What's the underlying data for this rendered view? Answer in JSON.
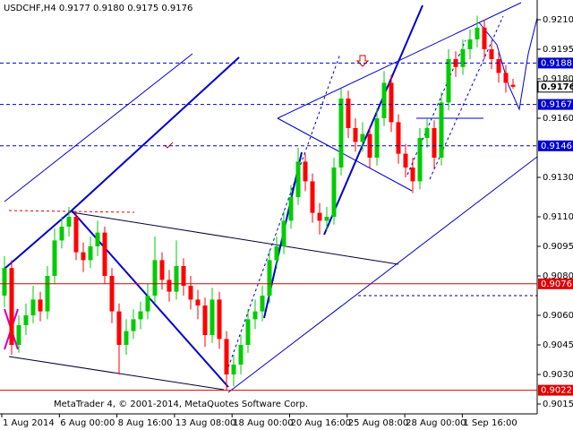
{
  "chart_data": {
    "type": "candlestick",
    "title": "USDCHF,H4  0.9177 0.9180 0.9175 0.9176",
    "watermark": "MetaTrader 4, © 2001-2014, MetaQuotes Software Corp.",
    "x_labels": [
      "1 Aug 2014",
      "6 Aug 00:00",
      "8 Aug 16:00",
      "13 Aug 08:00",
      "18 Aug 00:00",
      "20 Aug 16:00",
      "25 Aug 08:00",
      "28 Aug 00:00",
      "1 Sep 16:00"
    ],
    "ylim": [
      0.901,
      0.922
    ],
    "yticks": [
      {
        "value": 0.921,
        "label": "0.9210"
      },
      {
        "value": 0.9195,
        "label": "0.9195"
      },
      {
        "value": 0.918,
        "label": "0.9180"
      },
      {
        "value": 0.916,
        "label": "0.9160"
      },
      {
        "value": 0.913,
        "label": "0.9130"
      },
      {
        "value": 0.911,
        "label": "0.9110"
      },
      {
        "value": 0.9095,
        "label": "0.9095"
      },
      {
        "value": 0.908,
        "label": "0.9080"
      },
      {
        "value": 0.906,
        "label": "0.9060"
      },
      {
        "value": 0.9045,
        "label": "0.9045"
      },
      {
        "value": 0.903,
        "label": "0.9030"
      },
      {
        "value": 0.9015,
        "label": "0.9015"
      }
    ],
    "bull_color": "#00cc00",
    "bear_color": "#ff0000",
    "open": [
      0.907,
      0.9084,
      0.9045,
      0.9055,
      0.906,
      0.9068,
      0.9062,
      0.908,
      0.9098,
      0.9105,
      0.911,
      0.9092,
      0.9088,
      0.9095,
      0.9102,
      0.908,
      0.9062,
      0.9045,
      0.9052,
      0.9058,
      0.9062,
      0.907,
      0.9088,
      0.9078,
      0.9072,
      0.9085,
      0.9075,
      0.9068,
      0.9065,
      0.905,
      0.9068,
      0.9048,
      0.903,
      0.9035,
      0.9045,
      0.9058,
      0.9062,
      0.907,
      0.9088,
      0.9095,
      0.9108,
      0.912,
      0.9138,
      0.9128,
      0.9112,
      0.9108,
      0.911,
      0.9135,
      0.917,
      0.9155,
      0.9148,
      0.9152,
      0.914,
      0.916,
      0.9178,
      0.9158,
      0.9142,
      0.9135,
      0.9128,
      0.915,
      0.9155,
      0.914,
      0.9168,
      0.919,
      0.9186,
      0.9195,
      0.92,
      0.9206,
      0.9195,
      0.919,
      0.9183,
      0.9177
    ],
    "high": [
      0.909,
      0.9088,
      0.906,
      0.9066,
      0.9075,
      0.9072,
      0.9085,
      0.9104,
      0.911,
      0.9115,
      0.9113,
      0.9097,
      0.91,
      0.9108,
      0.9105,
      0.9084,
      0.9066,
      0.9058,
      0.9063,
      0.9067,
      0.9076,
      0.91,
      0.9092,
      0.9083,
      0.9098,
      0.9089,
      0.908,
      0.9073,
      0.9069,
      0.9074,
      0.9072,
      0.9052,
      0.904,
      0.905,
      0.9063,
      0.9068,
      0.9075,
      0.9093,
      0.91,
      0.9113,
      0.9126,
      0.9145,
      0.9142,
      0.9132,
      0.9117,
      0.9115,
      0.914,
      0.9175,
      0.9174,
      0.916,
      0.9158,
      0.9156,
      0.9165,
      0.9184,
      0.9182,
      0.9162,
      0.9147,
      0.914,
      0.9155,
      0.916,
      0.9159,
      0.9173,
      0.9195,
      0.9194,
      0.92,
      0.9205,
      0.9212,
      0.921,
      0.9199,
      0.9194,
      0.9187,
      0.918
    ],
    "low": [
      0.9064,
      0.904,
      0.9041,
      0.905,
      0.9056,
      0.9057,
      0.9058,
      0.9076,
      0.9094,
      0.91,
      0.9088,
      0.9082,
      0.9084,
      0.909,
      0.9076,
      0.9056,
      0.903,
      0.904,
      0.9048,
      0.9053,
      0.9058,
      0.9066,
      0.9073,
      0.9067,
      0.9068,
      0.907,
      0.9063,
      0.9058,
      0.9044,
      0.9046,
      0.9043,
      0.9022,
      0.9024,
      0.903,
      0.9041,
      0.9053,
      0.9057,
      0.9066,
      0.9084,
      0.9091,
      0.9104,
      0.9116,
      0.9123,
      0.9107,
      0.9101,
      0.9103,
      0.9106,
      0.9131,
      0.915,
      0.9143,
      0.9143,
      0.9135,
      0.9136,
      0.9156,
      0.9153,
      0.9137,
      0.913,
      0.9122,
      0.9124,
      0.9145,
      0.9134,
      0.9136,
      0.9164,
      0.9181,
      0.9182,
      0.919,
      0.9196,
      0.919,
      0.9185,
      0.9178,
      0.9173,
      0.9175
    ],
    "close": [
      0.9084,
      0.9045,
      0.9055,
      0.906,
      0.9068,
      0.9062,
      0.908,
      0.9098,
      0.9105,
      0.911,
      0.9092,
      0.9088,
      0.9095,
      0.9102,
      0.908,
      0.9062,
      0.9045,
      0.9052,
      0.9058,
      0.9062,
      0.907,
      0.9088,
      0.9078,
      0.9072,
      0.9085,
      0.9075,
      0.9068,
      0.9065,
      0.905,
      0.9068,
      0.9048,
      0.903,
      0.9035,
      0.9045,
      0.9058,
      0.9062,
      0.907,
      0.9088,
      0.9095,
      0.9108,
      0.912,
      0.9138,
      0.9128,
      0.9112,
      0.9108,
      0.911,
      0.9135,
      0.917,
      0.9155,
      0.9148,
      0.9152,
      0.914,
      0.916,
      0.9178,
      0.9158,
      0.9142,
      0.9135,
      0.9128,
      0.915,
      0.9155,
      0.914,
      0.9168,
      0.919,
      0.9186,
      0.9195,
      0.92,
      0.9206,
      0.9195,
      0.919,
      0.9183,
      0.9178,
      0.9176
    ],
    "levels": [
      {
        "value": 0.9188,
        "color": "#0000cc",
        "dashed": true
      },
      {
        "value": 0.9167,
        "color": "#0000cc",
        "dashed": true
      },
      {
        "value": 0.9146,
        "color": "#0000cc",
        "dashed": true
      },
      {
        "value": 0.9076,
        "color": "#dd0000",
        "dashed": false
      },
      {
        "value": 0.9022,
        "color": "#dd0000",
        "dashed": false
      }
    ],
    "bid": 0.9176
  }
}
